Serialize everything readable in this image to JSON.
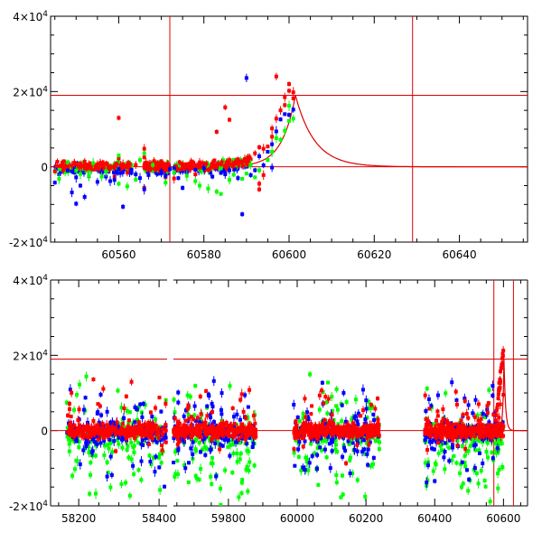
{
  "chart_data": [
    {
      "type": "scatter",
      "panel": "top",
      "x_range": [
        60544,
        60656
      ],
      "y_range": [
        -20000,
        40000
      ],
      "x_ticks": [
        "60560",
        "60580",
        "60600",
        "60620",
        "60640"
      ],
      "y_ticks": [
        {
          "mant": "4×10",
          "exp": "4"
        },
        {
          "mant": "2×10",
          "exp": "4"
        },
        {
          "mant": "0",
          "exp": ""
        },
        {
          "mant": "-2×10",
          "exp": "4"
        }
      ],
      "hlines": [
        19000,
        0
      ],
      "vlines": [
        60572,
        60629
      ],
      "model": {
        "peak_x": 60601.5,
        "peak_y": 19000,
        "rise_tau": 3.2,
        "fall_tau": 4.5,
        "x_end": 60656
      },
      "series": [
        {
          "color": "#ff0000",
          "points": [
            [
              60545,
              -1200
            ],
            [
              60547,
              -800
            ],
            [
              60549,
              300
            ],
            [
              60551,
              -500
            ],
            [
              60553,
              600
            ],
            [
              60555,
              -300
            ],
            [
              60557,
              400
            ],
            [
              60559,
              -200
            ],
            [
              60561,
              700
            ],
            [
              60562,
              -1500
            ],
            [
              60564,
              500
            ],
            [
              60566,
              2500
            ],
            [
              60566,
              4800
            ],
            [
              60567,
              -600
            ],
            [
              60570,
              1000
            ],
            [
              60571,
              -2800
            ],
            [
              60573,
              -400
            ],
            [
              60575,
              200
            ],
            [
              60577,
              600
            ],
            [
              60579,
              1200
            ],
            [
              60580,
              700
            ],
            [
              60582,
              900
            ],
            [
              60584,
              700
            ],
            [
              60586,
              1800
            ],
            [
              60588,
              2000
            ],
            [
              60589,
              1400
            ],
            [
              60591,
              2000
            ],
            [
              60592,
              3600
            ],
            [
              60593,
              5200
            ],
            [
              60594,
              4800
            ],
            [
              60595,
              5400
            ],
            [
              60596,
              8000
            ],
            [
              60596,
              10200
            ],
            [
              60597,
              12800
            ],
            [
              60598,
              15000
            ],
            [
              60599,
              16400
            ],
            [
              60599,
              18500
            ],
            [
              60600,
              20200
            ],
            [
              60600,
              22000
            ],
            [
              60601,
              19800
            ],
            [
              60601,
              18200
            ],
            [
              60594,
              -2200
            ],
            [
              60593,
              -4500
            ],
            [
              60593,
              -6000
            ],
            [
              60586,
              12500
            ],
            [
              60583,
              9300
            ],
            [
              60576,
              -1100
            ],
            [
              60578,
              -2000
            ],
            [
              60570,
              1500
            ],
            [
              60560,
              2300
            ],
            [
              60559,
              -2600
            ],
            [
              60556,
              -900
            ],
            [
              60552,
              1400
            ],
            [
              60566,
              -5600
            ],
            [
              60573,
              -3100
            ],
            [
              60580,
              300
            ],
            [
              60585,
              15800
            ],
            [
              60560,
              13000
            ],
            [
              60555,
              700
            ],
            [
              60597,
              24000
            ],
            [
              60579,
              -200
            ]
          ]
        },
        {
          "color": "#0000ff",
          "points": [
            [
              60545,
              -4200
            ],
            [
              60546,
              -2000
            ],
            [
              60548,
              -1000
            ],
            [
              60550,
              -2800
            ],
            [
              60551,
              -5000
            ],
            [
              60552,
              -8000
            ],
            [
              60553,
              -2500
            ],
            [
              60555,
              -4000
            ],
            [
              60556,
              -1400
            ],
            [
              60557,
              -2600
            ],
            [
              60559,
              -3500
            ],
            [
              60560,
              -600
            ],
            [
              60561,
              -10600
            ],
            [
              60563,
              -1600
            ],
            [
              60564,
              -2000
            ],
            [
              60565,
              -3000
            ],
            [
              60566,
              -6000
            ],
            [
              60567,
              -2200
            ],
            [
              60570,
              -1800
            ],
            [
              60571,
              -2400
            ],
            [
              60572,
              -600
            ],
            [
              60574,
              -3000
            ],
            [
              60575,
              -5600
            ],
            [
              60576,
              -1400
            ],
            [
              60578,
              -800
            ],
            [
              60580,
              -400
            ],
            [
              60582,
              -2600
            ],
            [
              60584,
              -1600
            ],
            [
              60585,
              -2000
            ],
            [
              60586,
              -900
            ],
            [
              60588,
              -3000
            ],
            [
              60589,
              -12600
            ],
            [
              60591,
              -2200
            ],
            [
              60592,
              -900
            ],
            [
              60593,
              2800
            ],
            [
              60594,
              400
            ],
            [
              60595,
              4000
            ],
            [
              60596,
              6000
            ],
            [
              60597,
              9400
            ],
            [
              60598,
              12600
            ],
            [
              60599,
              14000
            ],
            [
              60600,
              13800
            ],
            [
              60601,
              15200
            ],
            [
              60590,
              23600
            ],
            [
              60570,
              -1200
            ],
            [
              60563,
              -800
            ],
            [
              60558,
              -3800
            ],
            [
              60550,
              -9800
            ],
            [
              60549,
              -6800
            ],
            [
              60573,
              -400
            ],
            [
              60596,
              -200
            ]
          ]
        },
        {
          "color": "#00ff00",
          "points": [
            [
              60546,
              -3200
            ],
            [
              60548,
              1200
            ],
            [
              60550,
              -1000
            ],
            [
              60551,
              -1900
            ],
            [
              60554,
              1000
            ],
            [
              60556,
              -2600
            ],
            [
              60557,
              -1200
            ],
            [
              60560,
              -4500
            ],
            [
              60562,
              -5200
            ],
            [
              60564,
              -3400
            ],
            [
              60566,
              3600
            ],
            [
              60568,
              500
            ],
            [
              60571,
              -4200
            ],
            [
              60573,
              -1500
            ],
            [
              60576,
              -2400
            ],
            [
              60578,
              -3800
            ],
            [
              60579,
              -5000
            ],
            [
              60581,
              -5800
            ],
            [
              60583,
              -6600
            ],
            [
              60586,
              -3500
            ],
            [
              60589,
              -3200
            ],
            [
              60592,
              -2800
            ],
            [
              60593,
              -900
            ],
            [
              60595,
              1800
            ],
            [
              60596,
              4000
            ],
            [
              60598,
              7200
            ],
            [
              60599,
              9600
            ],
            [
              60600,
              12200
            ],
            [
              60601,
              12800
            ],
            [
              60600,
              16200
            ],
            [
              60597,
              7600
            ],
            [
              60591,
              600
            ],
            [
              60584,
              -7200
            ],
            [
              60565,
              1800
            ],
            [
              60553,
              -2400
            ],
            [
              60560,
              3000
            ],
            [
              60590,
              -1800
            ],
            [
              60587,
              -2100
            ]
          ]
        }
      ]
    },
    {
      "type": "scatter",
      "panel": "bottom",
      "x_range": [
        58130,
        60670
      ],
      "y_range": [
        -20000,
        40000
      ],
      "x_ticks": [
        "58200",
        "58400",
        "59800",
        "60000",
        "60200",
        "60400",
        "60600"
      ],
      "y_ticks": [
        {
          "mant": "4×10",
          "exp": "4"
        },
        {
          "mant": "2×10",
          "exp": "4"
        },
        {
          "mant": "0",
          "exp": ""
        },
        {
          "mant": "-2×10",
          "exp": "4"
        }
      ],
      "axis_break": {
        "from": 58420,
        "to": 59640,
        "gap_display": [
          58440,
          58470
        ]
      },
      "hlines": [
        19000,
        0
      ],
      "vlines": [
        60572,
        60629
      ],
      "seasons": [
        [
          58170,
          58420
        ],
        [
          59640,
          59880
        ],
        [
          59990,
          60240
        ],
        [
          60370,
          60600
        ]
      ]
    }
  ]
}
